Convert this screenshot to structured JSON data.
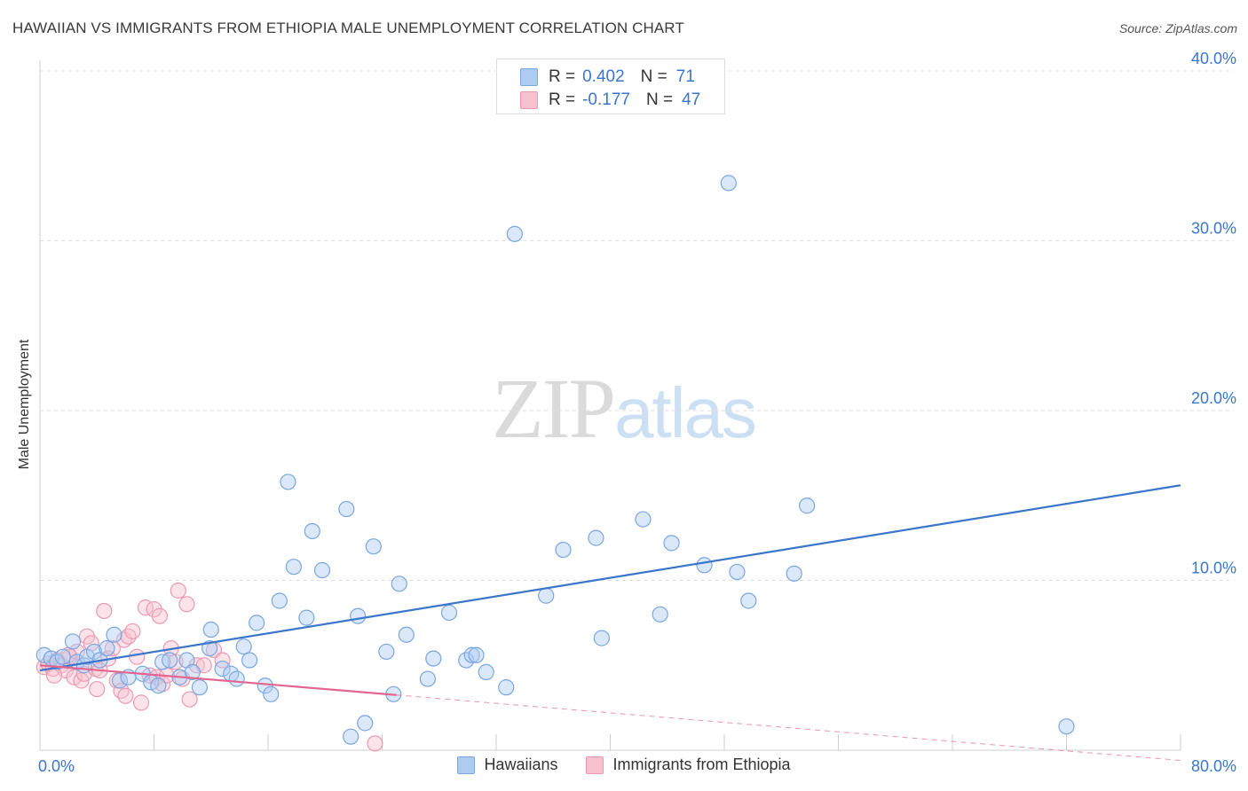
{
  "title": "HAWAIIAN VS IMMIGRANTS FROM ETHIOPIA MALE UNEMPLOYMENT CORRELATION CHART",
  "source": "Source: ZipAtlas.com",
  "watermark": {
    "zip": "ZIP",
    "atlas": "atlas"
  },
  "legend": {
    "r_label": "R =",
    "n_label": "N =",
    "series": [
      {
        "r": "0.402",
        "n": "71",
        "fill": "#aecbf2",
        "stroke": "#7aa6e0"
      },
      {
        "r": "-0.177",
        "n": "47",
        "fill": "#f7c0cf",
        "stroke": "#eb9ab1"
      }
    ]
  },
  "chart_data": {
    "type": "scatter",
    "title": "HAWAIIAN VS IMMIGRANTS FROM ETHIOPIA MALE UNEMPLOYMENT CORRELATION CHART",
    "xlabel": "",
    "ylabel": "Male Unemployment",
    "xlim": [
      0,
      80
    ],
    "ylim": [
      0,
      40
    ],
    "grid": true,
    "x_tick_labels": [
      "0.0%",
      "80.0%"
    ],
    "y_ticks": [
      10,
      20,
      30,
      40
    ],
    "y_tick_labels": [
      "10.0%",
      "20.0%",
      "30.0%",
      "40.0%"
    ],
    "series": [
      {
        "name": "Hawaiians",
        "color": "#3b76cc",
        "fill": "rgba(174,203,242,0.45)",
        "stroke": "#7aa6e0",
        "trend": {
          "x0": 0,
          "y0": 4.7,
          "x1": 80,
          "y1": 15.6,
          "solid_until": 80
        },
        "points": [
          [
            0.3,
            5.6
          ],
          [
            0.8,
            5.4
          ],
          [
            1.2,
            5.2
          ],
          [
            1.6,
            5.5
          ],
          [
            2.3,
            6.4
          ],
          [
            2.6,
            5.2
          ],
          [
            3.1,
            5.0
          ],
          [
            3.3,
            5.5
          ],
          [
            3.8,
            5.8
          ],
          [
            4.2,
            5.3
          ],
          [
            4.7,
            6.0
          ],
          [
            5.2,
            6.8
          ],
          [
            5.6,
            4.1
          ],
          [
            6.2,
            4.3
          ],
          [
            7.2,
            4.5
          ],
          [
            7.8,
            4.0
          ],
          [
            8.3,
            3.8
          ],
          [
            8.6,
            5.2
          ],
          [
            9.1,
            5.3
          ],
          [
            9.8,
            4.3
          ],
          [
            10.3,
            5.3
          ],
          [
            10.7,
            4.6
          ],
          [
            11.2,
            3.7
          ],
          [
            11.9,
            6.0
          ],
          [
            12.0,
            7.1
          ],
          [
            12.8,
            4.8
          ],
          [
            13.4,
            4.5
          ],
          [
            13.8,
            4.2
          ],
          [
            14.3,
            6.1
          ],
          [
            14.7,
            5.3
          ],
          [
            15.2,
            7.5
          ],
          [
            15.8,
            3.8
          ],
          [
            16.2,
            3.3
          ],
          [
            16.8,
            8.8
          ],
          [
            17.4,
            15.8
          ],
          [
            17.8,
            10.8
          ],
          [
            18.7,
            7.8
          ],
          [
            19.1,
            12.9
          ],
          [
            19.8,
            10.6
          ],
          [
            21.5,
            14.2
          ],
          [
            21.8,
            0.8
          ],
          [
            22.3,
            7.9
          ],
          [
            22.8,
            1.6
          ],
          [
            23.4,
            12.0
          ],
          [
            24.3,
            5.8
          ],
          [
            24.8,
            3.3
          ],
          [
            25.2,
            9.8
          ],
          [
            25.7,
            6.8
          ],
          [
            27.2,
            4.2
          ],
          [
            27.6,
            5.4
          ],
          [
            28.7,
            8.1
          ],
          [
            29.9,
            5.3
          ],
          [
            30.3,
            5.6
          ],
          [
            30.6,
            5.6
          ],
          [
            31.3,
            4.6
          ],
          [
            32.7,
            3.7
          ],
          [
            33.3,
            30.4
          ],
          [
            35.5,
            9.1
          ],
          [
            36.7,
            11.8
          ],
          [
            39.0,
            12.5
          ],
          [
            39.4,
            6.6
          ],
          [
            42.3,
            13.6
          ],
          [
            43.5,
            8.0
          ],
          [
            44.3,
            12.2
          ],
          [
            46.6,
            10.9
          ],
          [
            48.3,
            33.4
          ],
          [
            48.9,
            10.5
          ],
          [
            49.7,
            8.8
          ],
          [
            52.9,
            10.4
          ],
          [
            53.8,
            14.4
          ],
          [
            72.0,
            1.4
          ]
        ]
      },
      {
        "name": "Immigrants from Ethiopia",
        "color": "#e36690",
        "fill": "rgba(247,192,207,0.45)",
        "stroke": "#eb9ab1",
        "trend": {
          "x0": 0,
          "y0": 5.0,
          "x1": 80,
          "y1": -0.6,
          "solid_until": 25
        },
        "points": [
          [
            0.3,
            4.9
          ],
          [
            0.6,
            5.1
          ],
          [
            0.9,
            4.8
          ],
          [
            1.2,
            5.3
          ],
          [
            1.5,
            5.0
          ],
          [
            1.8,
            4.7
          ],
          [
            2.1,
            5.5
          ],
          [
            2.4,
            4.3
          ],
          [
            2.6,
            5.8
          ],
          [
            2.9,
            4.1
          ],
          [
            3.1,
            4.5
          ],
          [
            3.3,
            6.7
          ],
          [
            3.6,
            6.3
          ],
          [
            3.9,
            4.8
          ],
          [
            4.2,
            4.7
          ],
          [
            4.5,
            8.2
          ],
          [
            4.8,
            5.4
          ],
          [
            5.1,
            6.0
          ],
          [
            5.4,
            4.1
          ],
          [
            5.7,
            3.5
          ],
          [
            5.9,
            6.5
          ],
          [
            6.2,
            6.7
          ],
          [
            6.5,
            7.0
          ],
          [
            6.8,
            5.5
          ],
          [
            7.1,
            2.8
          ],
          [
            7.4,
            8.4
          ],
          [
            7.7,
            4.4
          ],
          [
            8.0,
            8.3
          ],
          [
            8.2,
            4.3
          ],
          [
            8.4,
            7.9
          ],
          [
            8.6,
            3.9
          ],
          [
            8.9,
            4.4
          ],
          [
            9.2,
            6.0
          ],
          [
            9.5,
            5.2
          ],
          [
            9.7,
            9.4
          ],
          [
            10.0,
            4.2
          ],
          [
            10.3,
            8.6
          ],
          [
            10.5,
            3.0
          ],
          [
            11.0,
            5.0
          ],
          [
            11.5,
            5.0
          ],
          [
            12.2,
            5.9
          ],
          [
            12.8,
            5.3
          ],
          [
            23.5,
            0.4
          ],
          [
            4.0,
            3.6
          ],
          [
            6.0,
            3.2
          ],
          [
            1.0,
            4.4
          ],
          [
            2.0,
            5.6
          ]
        ]
      }
    ]
  }
}
